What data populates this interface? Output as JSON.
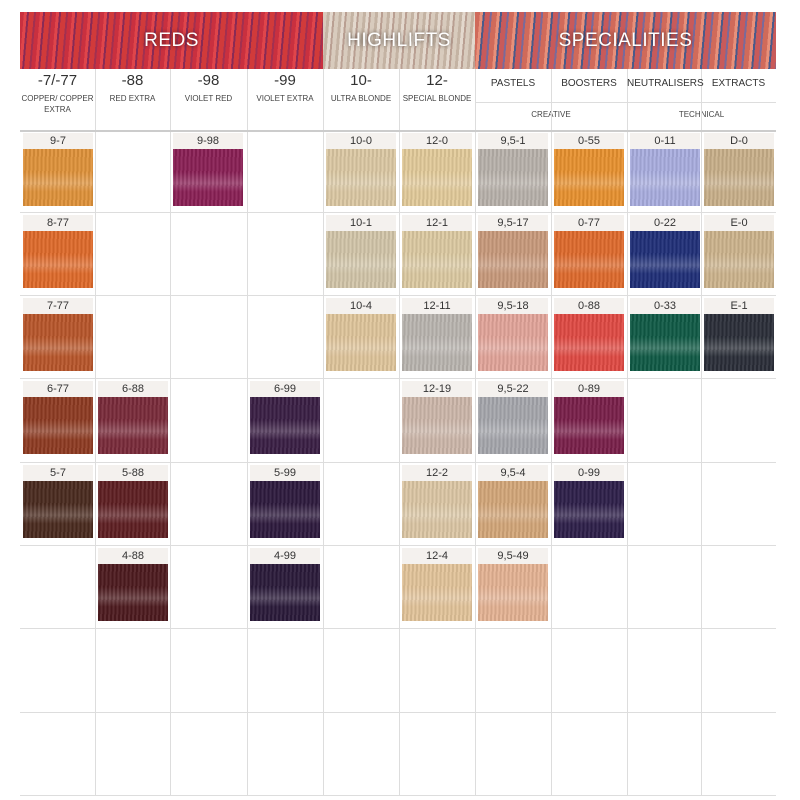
{
  "banners": {
    "reds": "REDS",
    "highlifts": "HIGHLIFTS",
    "specialities": "SPECIALITIES"
  },
  "columns": [
    {
      "code": "-7/-77",
      "sub": "COPPER/ COPPER EXTRA"
    },
    {
      "code": "-88",
      "sub": "RED EXTRA"
    },
    {
      "code": "-98",
      "sub": "VIOLET RED"
    },
    {
      "code": "-99",
      "sub": "VIOLET EXTRA"
    },
    {
      "code": "10-",
      "sub": "ULTRA BLONDE"
    },
    {
      "code": "12-",
      "sub": "SPECIAL BLONDE"
    },
    {
      "code": "",
      "sub": "",
      "title": "PASTELS"
    },
    {
      "code": "",
      "sub": "",
      "title": "BOOSTERS"
    },
    {
      "code": "",
      "sub": "",
      "title": "NEUTRALISERS"
    },
    {
      "code": "",
      "sub": "",
      "title": "EXTRACTS"
    }
  ],
  "groups": {
    "creative": "CREATIVE",
    "technical": "TECHNICAL"
  },
  "rows": [
    [
      {
        "label": "9-7",
        "color": "#e0923a"
      },
      null,
      {
        "label": "9-98",
        "color": "#8a1f55"
      },
      null,
      {
        "label": "10-0",
        "color": "#dcc9a4"
      },
      {
        "label": "12-0",
        "color": "#e3cb9a"
      },
      {
        "label": "9,5-1",
        "color": "#b9b2ab"
      },
      {
        "label": "0-55",
        "color": "#e8912f"
      },
      {
        "label": "0-11",
        "color": "#a9aee0"
      },
      {
        "label": "D-0",
        "color": "#c9b08a"
      }
    ],
    [
      {
        "label": "8-77",
        "color": "#e06a2a"
      },
      null,
      null,
      null,
      {
        "label": "10-1",
        "color": "#d3c6a9"
      },
      {
        "label": "12-1",
        "color": "#dccaa2"
      },
      {
        "label": "9,5-17",
        "color": "#c99a7c"
      },
      {
        "label": "0-77",
        "color": "#df6a2c"
      },
      {
        "label": "0-22",
        "color": "#1f2f78"
      },
      {
        "label": "E-0",
        "color": "#cdb48d"
      }
    ],
    [
      {
        "label": "7-77",
        "color": "#b9562a"
      },
      null,
      null,
      null,
      {
        "label": "10-4",
        "color": "#e0c59b"
      },
      {
        "label": "12-11",
        "color": "#bab5b0"
      },
      {
        "label": "9,5-18",
        "color": "#e3a59a"
      },
      {
        "label": "0-88",
        "color": "#e14a43"
      },
      {
        "label": "0-33",
        "color": "#0f5a45"
      },
      {
        "label": "E-1",
        "color": "#2a2e38"
      }
    ],
    [
      {
        "label": "6-77",
        "color": "#8e3b22"
      },
      {
        "label": "6-88",
        "color": "#7a2a3a"
      },
      null,
      {
        "label": "6-99",
        "color": "#3a1e44"
      },
      null,
      {
        "label": "12-19",
        "color": "#cdb7aa"
      },
      {
        "label": "9,5-22",
        "color": "#a6a7ad"
      },
      {
        "label": "0-89",
        "color": "#7a1f4a"
      },
      null,
      null
    ],
    [
      {
        "label": "5-7",
        "color": "#4a2a1e"
      },
      {
        "label": "5-88",
        "color": "#5e1e22"
      },
      null,
      {
        "label": "5-99",
        "color": "#2e1a3e"
      },
      null,
      {
        "label": "12-2",
        "color": "#dcc7a5"
      },
      {
        "label": "9,5-4",
        "color": "#d4a77a"
      },
      {
        "label": "0-99",
        "color": "#2e1f4a"
      },
      null,
      null
    ],
    [
      null,
      {
        "label": "4-88",
        "color": "#4d1a1e"
      },
      null,
      {
        "label": "4-99",
        "color": "#2a1a3a"
      },
      null,
      {
        "label": "12-4",
        "color": "#e3c49a"
      },
      {
        "label": "9,5-49",
        "color": "#e5b394"
      },
      null,
      null,
      null
    ],
    [
      null,
      null,
      null,
      null,
      null,
      null,
      null,
      null,
      null,
      null
    ],
    [
      null,
      null,
      null,
      null,
      null,
      null,
      null,
      null,
      null,
      null
    ]
  ]
}
